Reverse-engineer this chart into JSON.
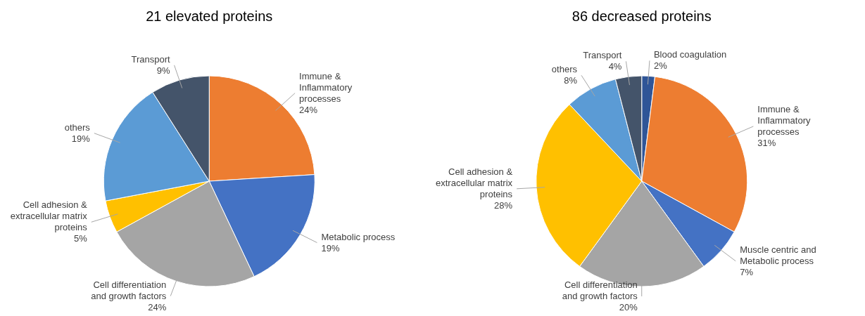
{
  "chart_data": [
    {
      "type": "pie",
      "title": "21 elevated proteins",
      "categories": [
        "Immune & Inflammatory processes",
        "Metabolic process",
        "Cell differentiation and growth factors",
        "Cell adhesion & extracellular matrix proteins",
        "others",
        "Transport"
      ],
      "values": [
        24,
        19,
        24,
        5,
        19,
        9
      ],
      "colors": [
        "#ed7d31",
        "#4472c4",
        "#a5a5a5",
        "#ffc000",
        "#5b9bd5",
        "#44546a"
      ],
      "value_labels": [
        "24%",
        "19%",
        "24%",
        "5%",
        "19%",
        "9%"
      ]
    },
    {
      "type": "pie",
      "title": "86 decreased proteins",
      "categories": [
        "Blood coagulation",
        "Immune & Inflammatory processes",
        "Muscle centric and Metabolic process",
        "Cell differentiation and growth factors",
        "Cell adhesion & extracellular matrix proteins",
        "others",
        "Transport"
      ],
      "values": [
        2,
        31,
        7,
        20,
        28,
        8,
        4
      ],
      "colors": [
        "#2f5597",
        "#ed7d31",
        "#4472c4",
        "#a5a5a5",
        "#ffc000",
        "#5b9bd5",
        "#44546a"
      ],
      "value_labels": [
        "2%",
        "31%",
        "7%",
        "20%",
        "28%",
        "8%",
        "4%"
      ]
    }
  ]
}
